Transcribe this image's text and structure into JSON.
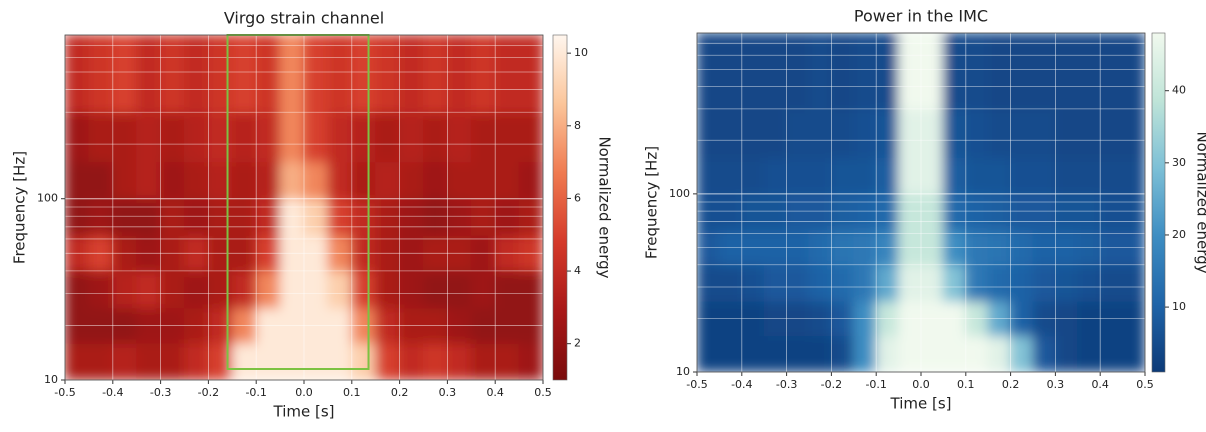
{
  "chart_data": [
    {
      "type": "heatmap",
      "title": "Virgo strain channel",
      "xlabel": "Time [s]",
      "ylabel": "Frequency [Hz]",
      "xlim": [
        -0.5,
        0.5
      ],
      "ylim": [
        10,
        800
      ],
      "yscale": "log",
      "grid": true,
      "minor_grid": true,
      "xticks": [
        -0.5,
        -0.4,
        -0.3,
        -0.2,
        -0.1,
        {
          "value": 0,
          "label": "0.0"
        },
        0.1,
        0.2,
        0.3,
        0.4,
        0.5
      ],
      "yticks": [
        10,
        100
      ],
      "xbins": [
        -0.5,
        -0.45,
        -0.4,
        -0.35,
        -0.3,
        -0.25,
        -0.2,
        -0.15,
        -0.1,
        -0.05,
        0,
        0.05,
        0.1,
        0.15,
        0.2,
        0.25,
        0.3,
        0.35,
        0.4,
        0.45,
        0.5
      ],
      "ybins": [
        10,
        16,
        25,
        40,
        63,
        100,
        160,
        300,
        800
      ],
      "z": [
        [
          3,
          3,
          3.5,
          3,
          3,
          4,
          5,
          10,
          10,
          10,
          10,
          10,
          9,
          5,
          4,
          4.5,
          4,
          3,
          3,
          2.5
        ],
        [
          2,
          2,
          2,
          2.5,
          2.5,
          3,
          4,
          7,
          10,
          10,
          10,
          10,
          7,
          4,
          3,
          3,
          2.5,
          2,
          2,
          2
        ],
        [
          2,
          2.5,
          3.5,
          4,
          3,
          2.5,
          3,
          4,
          7,
          10,
          10,
          9,
          5,
          3,
          2.5,
          2,
          2,
          2.5,
          2,
          2
        ],
        [
          4,
          5,
          3,
          2.5,
          3,
          4,
          3,
          3,
          5,
          10,
          10,
          7,
          4,
          3,
          2.5,
          3,
          3,
          2.5,
          4,
          4.5
        ],
        [
          2,
          2.5,
          2,
          2,
          3,
          2.5,
          3,
          3,
          4,
          10,
          9,
          5,
          4,
          3,
          2.5,
          2,
          2.5,
          3,
          2.5,
          3
        ],
        [
          2,
          2,
          3,
          3.5,
          2.5,
          3,
          3.5,
          3,
          3.5,
          8,
          7,
          4,
          3,
          3.5,
          3,
          2.5,
          3,
          3,
          3,
          2.5
        ],
        [
          2.5,
          3,
          3,
          3.5,
          3,
          3.5,
          4,
          3.5,
          4,
          7,
          5,
          4,
          3.5,
          3,
          3.5,
          3,
          3.5,
          3,
          3,
          3
        ],
        [
          4,
          4.5,
          5,
          4,
          4.5,
          4,
          4.5,
          5,
          4.5,
          7,
          5,
          4.5,
          5,
          4.5,
          4,
          4.5,
          4,
          4.5,
          4,
          4
        ]
      ],
      "clim": [
        1,
        10.5
      ],
      "colormap": [
        "#7a0c0c",
        "#a81818",
        "#d43a2a",
        "#ef7a50",
        "#fbc59a",
        "#fff6ee"
      ],
      "colorbar_label": "Normalized energy",
      "colorbar_ticks": [
        2,
        4,
        6,
        8,
        10
      ],
      "highlight": {
        "x": [
          -0.16,
          0.135
        ],
        "y": [
          11.5,
          800
        ],
        "color": "#7dc242"
      }
    },
    {
      "type": "heatmap",
      "title": "Power in the IMC",
      "xlabel": "Time [s]",
      "ylabel": "Frequency [Hz]",
      "xlim": [
        -0.5,
        0.5
      ],
      "ylim": [
        10,
        800
      ],
      "yscale": "log",
      "grid": true,
      "minor_grid": true,
      "xticks": [
        -0.5,
        -0.4,
        -0.3,
        -0.2,
        -0.1,
        {
          "value": 0,
          "label": "0.0"
        },
        0.1,
        0.2,
        0.3,
        0.4,
        0.5
      ],
      "yticks": [
        10,
        100
      ],
      "xbins": [
        -0.5,
        -0.45,
        -0.4,
        -0.35,
        -0.3,
        -0.25,
        -0.2,
        -0.15,
        -0.1,
        -0.05,
        0,
        0.05,
        0.1,
        0.15,
        0.2,
        0.25,
        0.3,
        0.35,
        0.4,
        0.45,
        0.5
      ],
      "ybins": [
        10,
        16,
        25,
        40,
        63,
        100,
        160,
        300,
        800
      ],
      "z": [
        [
          3,
          3,
          3,
          3,
          3,
          3,
          5,
          20,
          45,
          48,
          48,
          48,
          48,
          45,
          30,
          8,
          4,
          3,
          3,
          3
        ],
        [
          3,
          3,
          3,
          4,
          4,
          5,
          8,
          20,
          40,
          48,
          48,
          48,
          40,
          25,
          10,
          5,
          4,
          3,
          3,
          3
        ],
        [
          5,
          5,
          6,
          8,
          8,
          10,
          12,
          15,
          25,
          45,
          45,
          30,
          15,
          12,
          10,
          8,
          7,
          6,
          5,
          5
        ],
        [
          8,
          10,
          10,
          10,
          10,
          12,
          14,
          15,
          18,
          40,
          40,
          20,
          15,
          14,
          12,
          10,
          10,
          9,
          8,
          8
        ],
        [
          6,
          6,
          7,
          7,
          8,
          8,
          9,
          10,
          12,
          40,
          40,
          12,
          10,
          9,
          8,
          8,
          7,
          7,
          6,
          6
        ],
        [
          5,
          5,
          5,
          6,
          6,
          6,
          7,
          7,
          9,
          45,
          45,
          9,
          7,
          7,
          6,
          6,
          5,
          5,
          5,
          5
        ],
        [
          4,
          4,
          4,
          4,
          5,
          5,
          5,
          6,
          7,
          45,
          45,
          7,
          6,
          5,
          5,
          5,
          4,
          4,
          4,
          4
        ],
        [
          4,
          4,
          4,
          4,
          4,
          5,
          4,
          5,
          5,
          48,
          48,
          5,
          5,
          4,
          4,
          4,
          4,
          4,
          4,
          4
        ]
      ],
      "clim": [
        1,
        48
      ],
      "colormap": [
        "#0c3a78",
        "#1f64a8",
        "#3d8dc2",
        "#7cbfd6",
        "#bfe4d8",
        "#f1f9ee"
      ],
      "colorbar_label": "Normalized energy",
      "colorbar_ticks": [
        10,
        20,
        30,
        40
      ]
    }
  ]
}
